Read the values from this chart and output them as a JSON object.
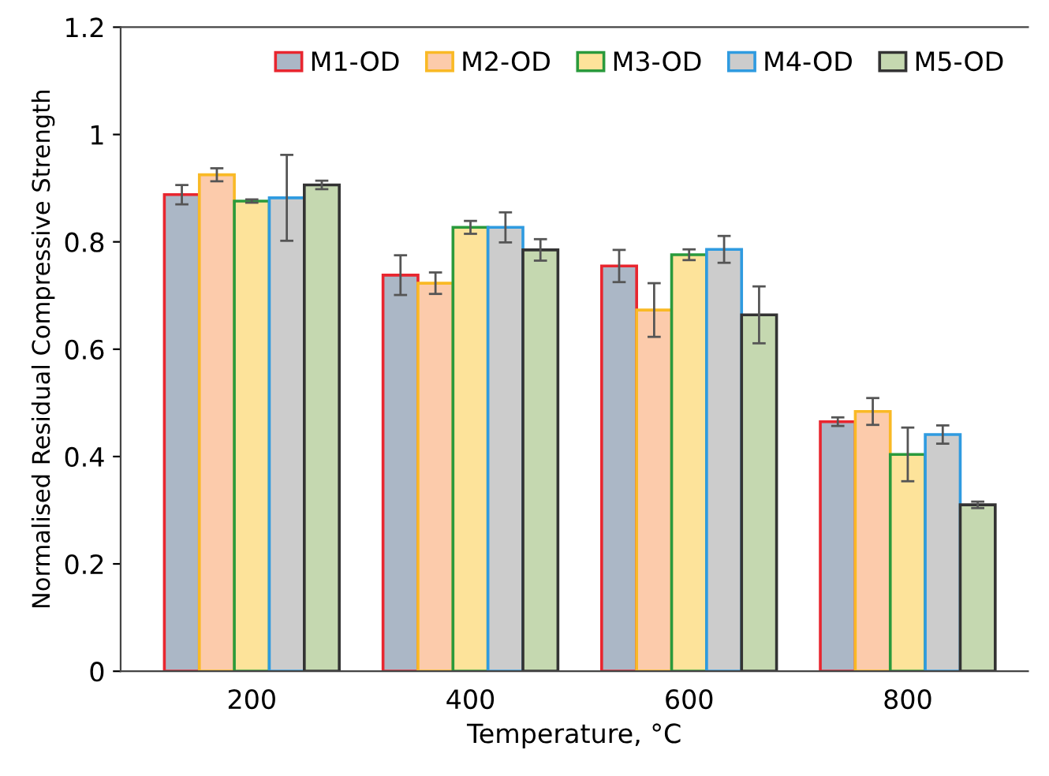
{
  "chart_data": {
    "type": "bar",
    "xlabel": "Temperature, °C",
    "ylabel": "Normalised Residual Compressive Strength",
    "categories": [
      "200",
      "400",
      "600",
      "800"
    ],
    "series": [
      {
        "name": "M1-OD",
        "color": "#abb7c6",
        "values": [
          0.888,
          0.738,
          0.755,
          0.465
        ],
        "errors": [
          0.018,
          0.037,
          0.03,
          0.008
        ]
      },
      {
        "name": "M2-OD",
        "color": "#fccbab",
        "values": [
          0.925,
          0.723,
          0.673,
          0.484
        ],
        "errors": [
          0.012,
          0.02,
          0.05,
          0.025
        ]
      },
      {
        "name": "M3-OD",
        "color": "#fde39a",
        "values": [
          0.876,
          0.827,
          0.776,
          0.404
        ],
        "errors": [
          0.003,
          0.012,
          0.01,
          0.05
        ]
      },
      {
        "name": "M4-OD",
        "color": "#cccccc",
        "values": [
          0.882,
          0.827,
          0.786,
          0.441
        ],
        "errors": [
          0.08,
          0.028,
          0.025,
          0.017
        ]
      },
      {
        "name": "M5-OD",
        "color": "#c5d8b0",
        "values": [
          0.906,
          0.785,
          0.664,
          0.31
        ],
        "errors": [
          0.008,
          0.02,
          0.053,
          0.006
        ]
      }
    ],
    "ylim": [
      0,
      1.2
    ],
    "yticks": [
      0,
      0.2,
      0.4,
      0.6,
      0.8,
      1,
      1.2
    ],
    "grid": false,
    "legend": "top right"
  }
}
